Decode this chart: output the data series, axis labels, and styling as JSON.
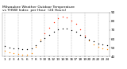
{
  "title_line1": "Milwaukee Weather Outdoor Temperature",
  "title_line2": "vs THSW Index  per Hour  (24 Hours)",
  "title_fontsize": 3.2,
  "background_color": "#ffffff",
  "grid_color": "#999999",
  "hours": [
    1,
    2,
    3,
    4,
    5,
    6,
    7,
    8,
    9,
    10,
    11,
    12,
    13,
    14,
    15,
    16,
    17,
    18,
    19,
    20,
    21,
    22,
    23,
    24
  ],
  "temp_values": [
    52,
    50,
    49,
    49,
    48,
    48,
    49,
    53,
    57,
    61,
    65,
    68,
    71,
    72,
    72,
    70,
    68,
    65,
    62,
    59,
    57,
    55,
    54,
    53
  ],
  "thsw_values": [
    47,
    45,
    44,
    43,
    42,
    42,
    44,
    51,
    59,
    66,
    73,
    79,
    83,
    85,
    84,
    81,
    77,
    71,
    64,
    58,
    54,
    51,
    49,
    48
  ],
  "temp_color": "#000000",
  "thsw_color_hi": "#ff2200",
  "thsw_color_lo": "#ff8800",
  "thsw_threshold": 60,
  "ylim": [
    40,
    90
  ],
  "yticks": [
    40,
    50,
    60,
    70,
    80,
    90
  ],
  "ytick_labels": [
    "40",
    "50",
    "60",
    "70",
    "80",
    "90"
  ],
  "grid_hours": [
    1,
    4,
    7,
    10,
    13,
    16,
    19,
    22,
    25
  ],
  "marker_size": 1.0,
  "tick_fontsize": 3.0,
  "figwidth": 1.6,
  "figheight": 0.87,
  "dpi": 100
}
